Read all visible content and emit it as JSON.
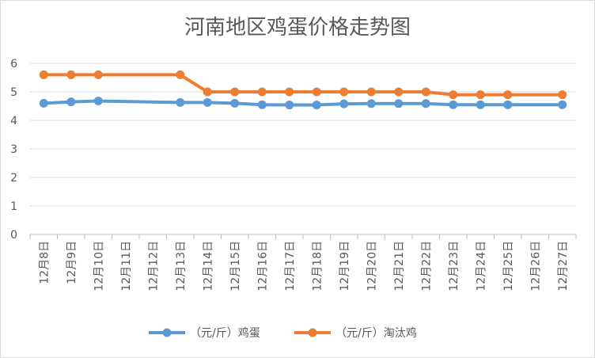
{
  "chart_data": {
    "type": "line",
    "title": "河南地区鸡蛋价格走势图",
    "xlabel": "",
    "ylabel": "",
    "ylim": [
      0,
      6
    ],
    "yticks": [
      0,
      1,
      2,
      3,
      4,
      5,
      6
    ],
    "categories": [
      "12月8日",
      "12月9日",
      "12月10日",
      "12月11日",
      "12月12日",
      "12月13日",
      "12月14日",
      "12月15日",
      "12月16日",
      "12月17日",
      "12月18日",
      "12月19日",
      "12月20日",
      "12月21日",
      "12月22日",
      "12月23日",
      "12月24日",
      "12月25日",
      "12月26日",
      "12月27日"
    ],
    "series": [
      {
        "name": "（元/斤）鸡蛋",
        "color": "#5b9bd5",
        "values": [
          4.6,
          4.65,
          4.68,
          null,
          null,
          4.63,
          4.63,
          4.6,
          4.55,
          4.54,
          4.54,
          4.58,
          4.59,
          4.59,
          4.59,
          4.55,
          4.55,
          4.55,
          null,
          4.55
        ]
      },
      {
        "name": "（元/斤）淘汰鸡",
        "color": "#ed7d31",
        "values": [
          5.6,
          5.6,
          5.6,
          null,
          null,
          5.6,
          5.0,
          5.0,
          5.0,
          5.0,
          5.0,
          5.0,
          5.0,
          5.0,
          5.0,
          4.9,
          4.9,
          4.9,
          null,
          4.9
        ]
      }
    ],
    "grid": true,
    "legend": "bottom"
  }
}
